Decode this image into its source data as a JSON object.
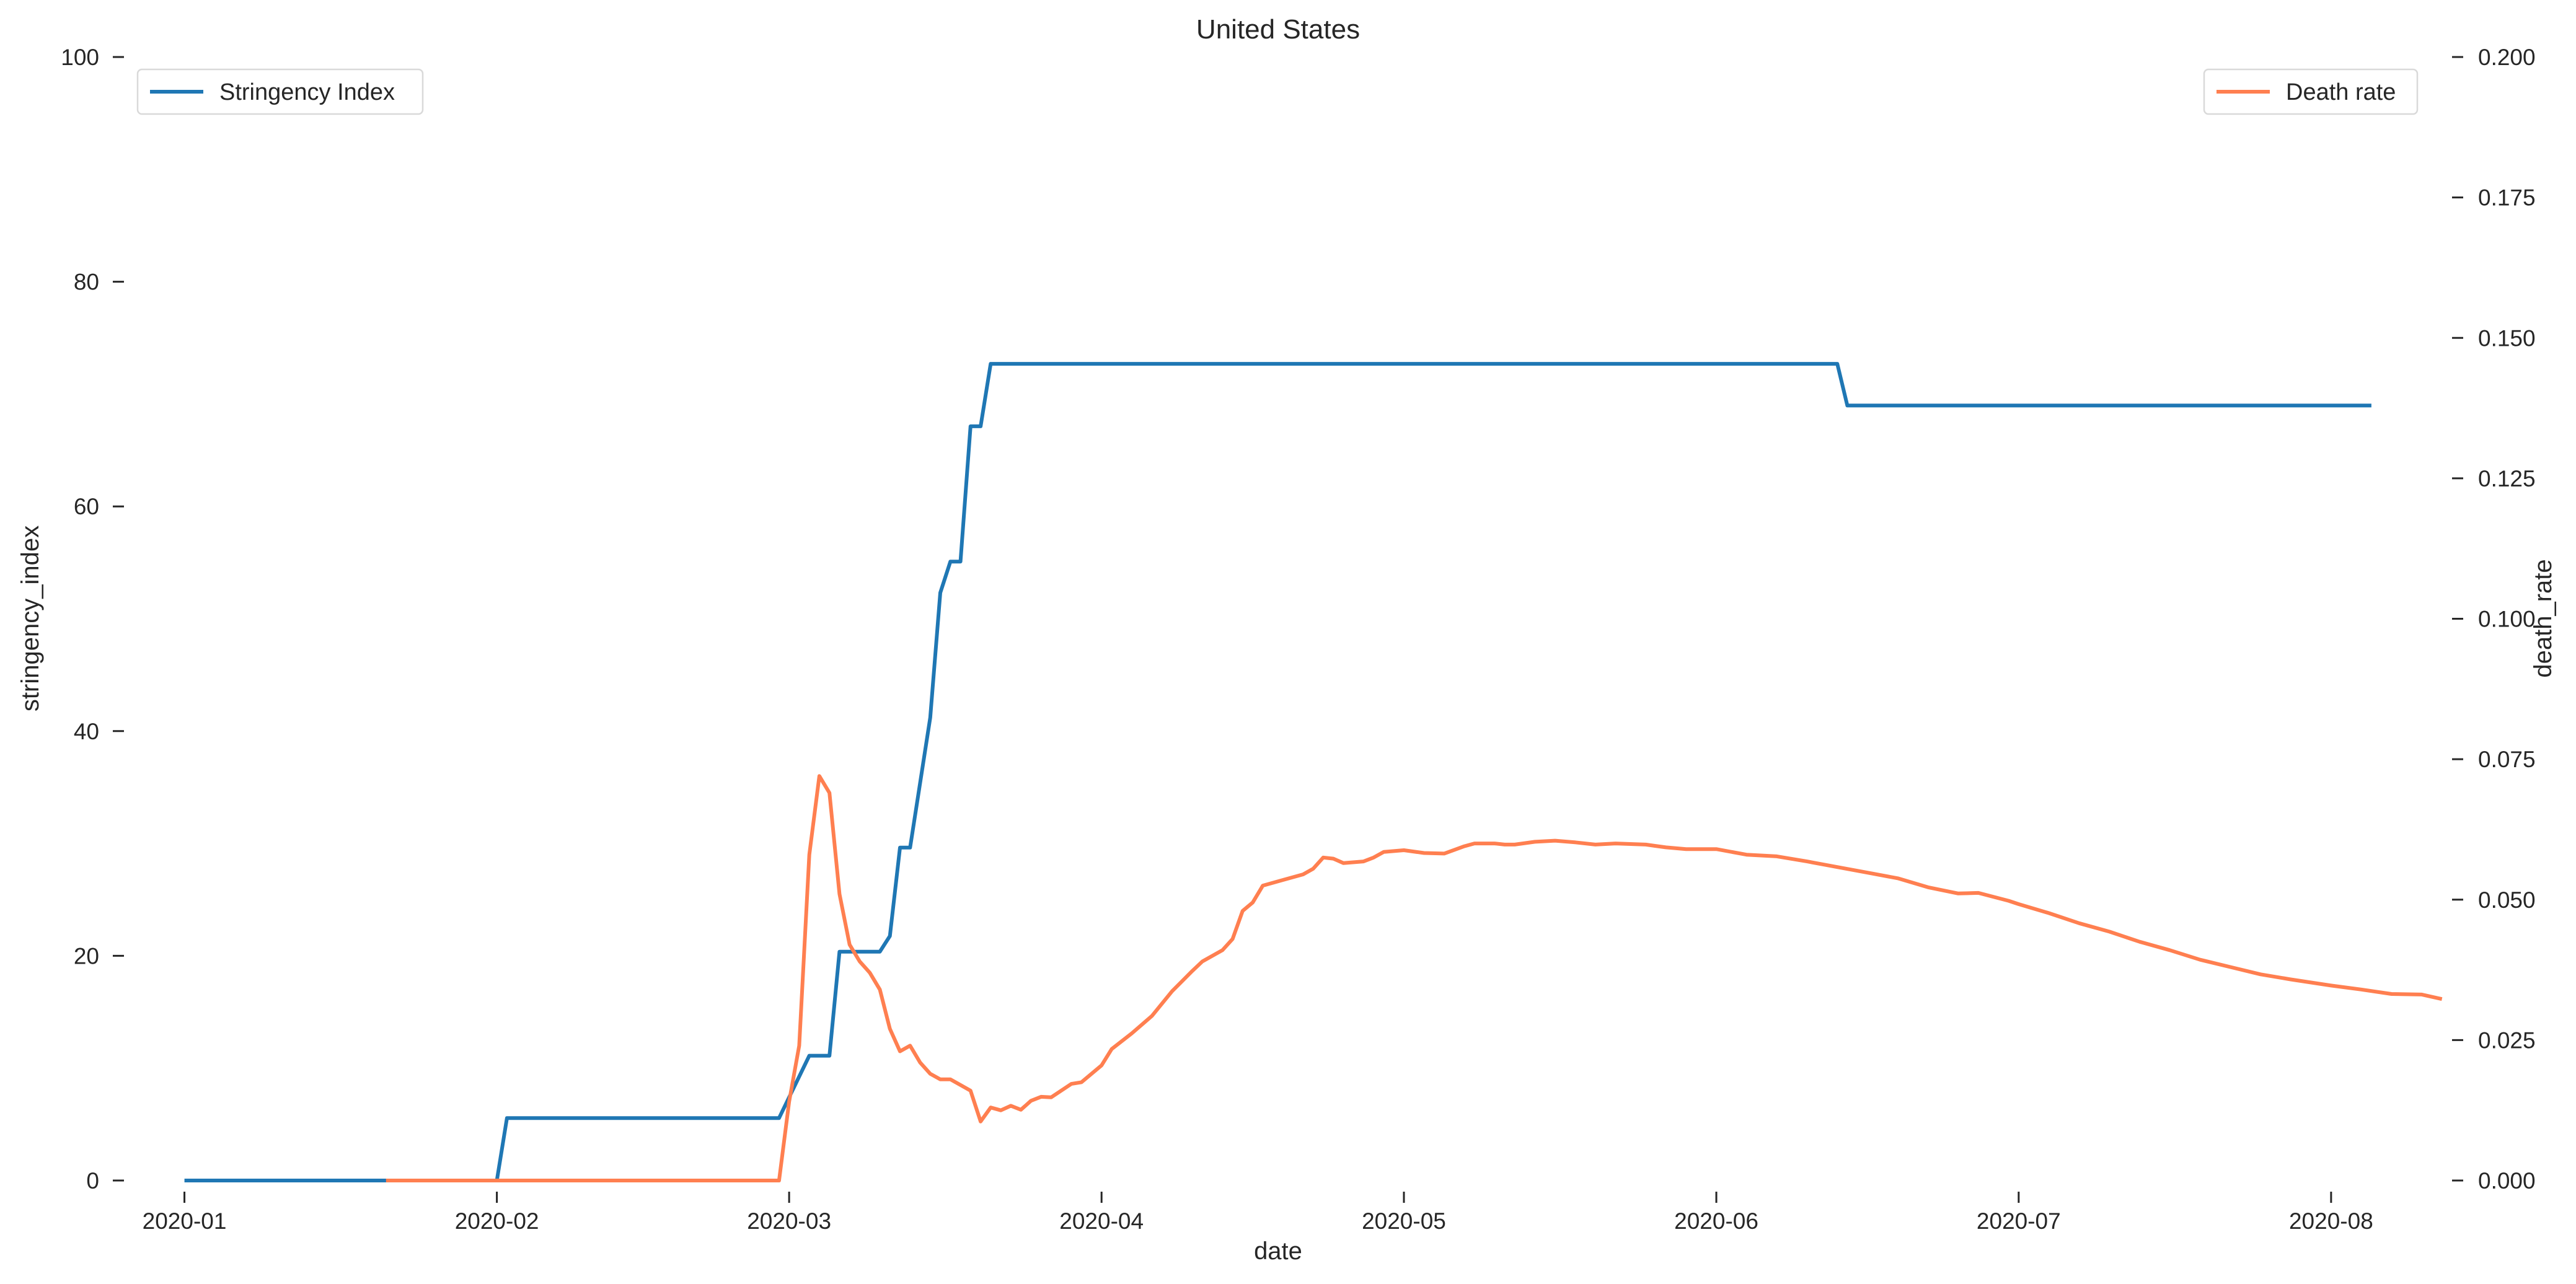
{
  "chart_data": {
    "type": "line",
    "title": "United States",
    "xlabel": "date",
    "ylabel_left": "stringency_index",
    "ylabel_right": "death_rate",
    "x_range": [
      "2019-12-26",
      "2020-08-13"
    ],
    "x_ticks": [
      {
        "date": "2020-01-01",
        "label": "2020-01"
      },
      {
        "date": "2020-02-01",
        "label": "2020-02"
      },
      {
        "date": "2020-03-01",
        "label": "2020-03"
      },
      {
        "date": "2020-04-01",
        "label": "2020-04"
      },
      {
        "date": "2020-05-01",
        "label": "2020-05"
      },
      {
        "date": "2020-06-01",
        "label": "2020-06"
      },
      {
        "date": "2020-07-01",
        "label": "2020-07"
      },
      {
        "date": "2020-08-01",
        "label": "2020-08"
      }
    ],
    "y_left": {
      "range": [
        0,
        100
      ],
      "ticks": [
        0,
        20,
        40,
        60,
        80,
        100
      ],
      "tick_labels": [
        "0",
        "20",
        "40",
        "60",
        "80",
        "100"
      ]
    },
    "y_right": {
      "range": [
        0,
        0.2
      ],
      "ticks": [
        0,
        0.025,
        0.05,
        0.075,
        0.1,
        0.125,
        0.15,
        0.175,
        0.2
      ],
      "tick_labels": [
        "0.000",
        "0.025",
        "0.050",
        "0.075",
        "0.100",
        "0.125",
        "0.150",
        "0.175",
        "0.200"
      ]
    },
    "grid": false,
    "series": [
      {
        "name": "Stringency Index",
        "axis": "left",
        "color": "#1f77b4",
        "legend_position": "top-left",
        "points": [
          [
            "2020-01-01",
            0
          ],
          [
            "2020-02-01",
            0
          ],
          [
            "2020-02-02",
            5.56
          ],
          [
            "2020-02-29",
            5.56
          ],
          [
            "2020-03-03",
            11.11
          ],
          [
            "2020-03-05",
            11.11
          ],
          [
            "2020-03-06",
            20.37
          ],
          [
            "2020-03-10",
            20.37
          ],
          [
            "2020-03-11",
            21.76
          ],
          [
            "2020-03-12",
            29.63
          ],
          [
            "2020-03-13",
            29.63
          ],
          [
            "2020-03-15",
            41.2
          ],
          [
            "2020-03-16",
            52.31
          ],
          [
            "2020-03-17",
            55.09
          ],
          [
            "2020-03-18",
            55.09
          ],
          [
            "2020-03-19",
            67.13
          ],
          [
            "2020-03-20",
            67.13
          ],
          [
            "2020-03-21",
            72.69
          ],
          [
            "2020-06-13",
            72.69
          ],
          [
            "2020-06-14",
            68.98
          ],
          [
            "2020-08-05",
            68.98
          ]
        ]
      },
      {
        "name": "Death rate",
        "axis": "right",
        "color": "#ff7f50",
        "legend_position": "top-right",
        "points": [
          [
            "2020-01-21",
            0
          ],
          [
            "2020-02-29",
            0
          ],
          [
            "2020-03-01",
            0.014
          ],
          [
            "2020-03-02",
            0.024
          ],
          [
            "2020-03-03",
            0.058
          ],
          [
            "2020-03-04",
            0.072
          ],
          [
            "2020-03-05",
            0.069
          ],
          [
            "2020-03-06",
            0.051
          ],
          [
            "2020-03-07",
            0.042
          ],
          [
            "2020-03-08",
            0.039
          ],
          [
            "2020-03-09",
            0.037
          ],
          [
            "2020-03-10",
            0.034
          ],
          [
            "2020-03-11",
            0.027
          ],
          [
            "2020-03-12",
            0.023
          ],
          [
            "2020-03-13",
            0.024
          ],
          [
            "2020-03-14",
            0.021
          ],
          [
            "2020-03-15",
            0.019
          ],
          [
            "2020-03-16",
            0.018
          ],
          [
            "2020-03-17",
            0.018
          ],
          [
            "2020-03-18",
            0.017
          ],
          [
            "2020-03-19",
            0.016
          ],
          [
            "2020-03-20",
            0.0105
          ],
          [
            "2020-03-21",
            0.013
          ],
          [
            "2020-03-22",
            0.0125
          ],
          [
            "2020-03-23",
            0.0133
          ],
          [
            "2020-03-24",
            0.0126
          ],
          [
            "2020-03-25",
            0.0142
          ],
          [
            "2020-03-26",
            0.0149
          ],
          [
            "2020-03-27",
            0.0148
          ],
          [
            "2020-03-29",
            0.0172
          ],
          [
            "2020-03-30",
            0.0175
          ],
          [
            "2020-04-01",
            0.0205
          ],
          [
            "2020-04-02",
            0.0234
          ],
          [
            "2020-04-04",
            0.0262
          ],
          [
            "2020-04-06",
            0.0293
          ],
          [
            "2020-04-08",
            0.0337
          ],
          [
            "2020-04-10",
            0.0373
          ],
          [
            "2020-04-11",
            0.039
          ],
          [
            "2020-04-13",
            0.041
          ],
          [
            "2020-04-14",
            0.043
          ],
          [
            "2020-04-15",
            0.048
          ],
          [
            "2020-04-16",
            0.0495
          ],
          [
            "2020-04-17",
            0.0525
          ],
          [
            "2020-04-19",
            0.0535
          ],
          [
            "2020-04-21",
            0.0545
          ],
          [
            "2020-04-22",
            0.0555
          ],
          [
            "2020-04-23",
            0.0575
          ],
          [
            "2020-04-24",
            0.0573
          ],
          [
            "2020-04-25",
            0.0565
          ],
          [
            "2020-04-27",
            0.0568
          ],
          [
            "2020-04-28",
            0.0575
          ],
          [
            "2020-04-29",
            0.0585
          ],
          [
            "2020-05-01",
            0.0588
          ],
          [
            "2020-05-03",
            0.0583
          ],
          [
            "2020-05-05",
            0.0582
          ],
          [
            "2020-05-07",
            0.0595
          ],
          [
            "2020-05-08",
            0.06
          ],
          [
            "2020-05-10",
            0.06
          ],
          [
            "2020-05-11",
            0.0598
          ],
          [
            "2020-05-12",
            0.0598
          ],
          [
            "2020-05-14",
            0.0603
          ],
          [
            "2020-05-16",
            0.0605
          ],
          [
            "2020-05-18",
            0.0602
          ],
          [
            "2020-05-20",
            0.0598
          ],
          [
            "2020-05-22",
            0.06
          ],
          [
            "2020-05-25",
            0.0598
          ],
          [
            "2020-05-27",
            0.0593
          ],
          [
            "2020-05-29",
            0.059
          ],
          [
            "2020-06-01",
            0.059
          ],
          [
            "2020-06-04",
            0.058
          ],
          [
            "2020-06-07",
            0.0577
          ],
          [
            "2020-06-10",
            0.0568
          ],
          [
            "2020-06-13",
            0.0558
          ],
          [
            "2020-06-16",
            0.0548
          ],
          [
            "2020-06-19",
            0.0538
          ],
          [
            "2020-06-22",
            0.0522
          ],
          [
            "2020-06-25",
            0.0511
          ],
          [
            "2020-06-27",
            0.0512
          ],
          [
            "2020-06-30",
            0.0498
          ],
          [
            "2020-07-01",
            0.0492
          ],
          [
            "2020-07-04",
            0.0476
          ],
          [
            "2020-07-07",
            0.0458
          ],
          [
            "2020-07-10",
            0.0443
          ],
          [
            "2020-07-13",
            0.0425
          ],
          [
            "2020-07-16",
            0.041
          ],
          [
            "2020-07-19",
            0.0393
          ],
          [
            "2020-07-22",
            0.038
          ],
          [
            "2020-07-25",
            0.0367
          ],
          [
            "2020-07-28",
            0.0358
          ],
          [
            "2020-08-01",
            0.0347
          ],
          [
            "2020-08-04",
            0.034
          ],
          [
            "2020-08-07",
            0.0332
          ],
          [
            "2020-08-10",
            0.0331
          ],
          [
            "2020-08-12",
            0.0323
          ]
        ]
      }
    ]
  }
}
